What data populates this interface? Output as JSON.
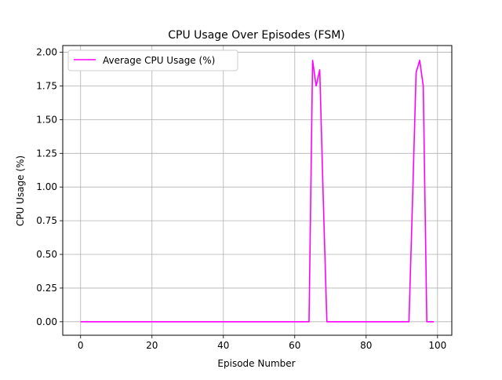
{
  "chart_data": {
    "type": "line",
    "title": "CPU Usage Over Episodes (FSM)",
    "xlabel": "Episode Number",
    "ylabel": "CPU Usage (%)",
    "xlim": [
      -5,
      104
    ],
    "ylim": [
      -0.1,
      2.05
    ],
    "xticks": [
      0,
      20,
      40,
      60,
      80,
      100
    ],
    "yticks": [
      0.0,
      0.25,
      0.5,
      0.75,
      1.0,
      1.25,
      1.5,
      1.75,
      2.0
    ],
    "xtick_labels": [
      "0",
      "20",
      "40",
      "60",
      "80",
      "100"
    ],
    "ytick_labels": [
      "0.00",
      "0.25",
      "0.50",
      "0.75",
      "1.00",
      "1.25",
      "1.50",
      "1.75",
      "2.00"
    ],
    "grid": true,
    "legend_position": "top-left",
    "series": [
      {
        "name": "Average CPU Usage (%)",
        "color": "#ff00ff",
        "x": [
          0,
          64,
          65,
          66,
          67,
          68,
          69,
          92,
          93,
          94,
          95,
          96,
          97,
          99
        ],
        "y": [
          0,
          0,
          1.94,
          1.75,
          1.87,
          0.9,
          0,
          0,
          0.9,
          1.85,
          1.94,
          1.75,
          0,
          0
        ]
      }
    ]
  }
}
